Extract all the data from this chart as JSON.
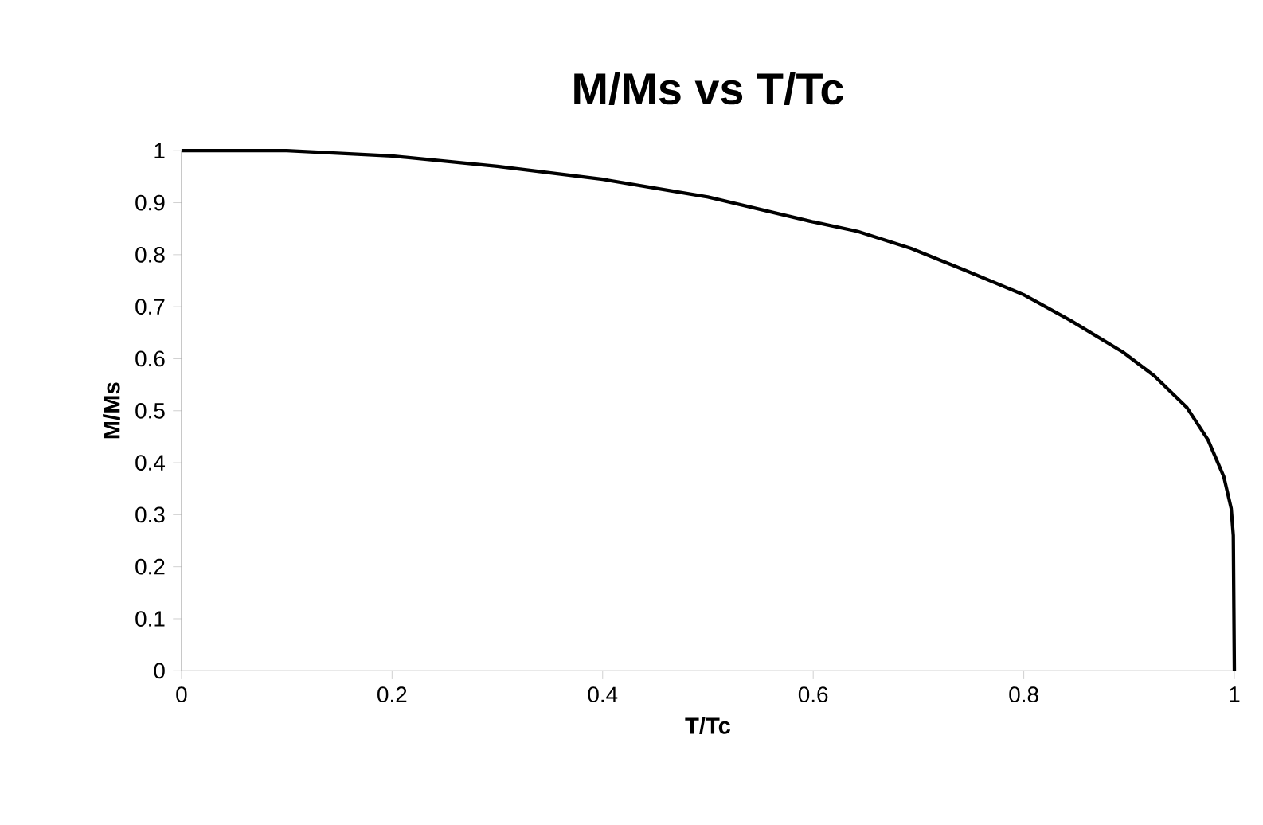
{
  "chart_data": {
    "type": "line",
    "title": "M/Ms vs T/Tc",
    "xlabel": "T/Tc",
    "ylabel": "M/Ms",
    "x": [
      0,
      0.1,
      0.2,
      0.3,
      0.4,
      0.5,
      0.6,
      0.642,
      0.693,
      0.743,
      0.8,
      0.844,
      0.894,
      0.924,
      0.955,
      0.975,
      0.99,
      0.997,
      0.999,
      1
    ],
    "series": [
      {
        "color": "#000000",
        "values": [
          1,
          1,
          0.99,
          0.97,
          0.945,
          0.911,
          0.863,
          0.845,
          0.812,
          0.771,
          0.723,
          0.674,
          0.613,
          0.567,
          0.506,
          0.444,
          0.373,
          0.312,
          0.26,
          0
        ]
      }
    ],
    "xlim": [
      0,
      1
    ],
    "ylim": [
      0,
      1
    ],
    "xticks": [
      0,
      0.2,
      0.4,
      0.6,
      0.8,
      1
    ],
    "yticks": [
      0,
      0.1,
      0.2,
      0.3,
      0.4,
      0.5,
      0.6,
      0.7,
      0.8,
      0.9,
      1
    ],
    "grid": false,
    "marker": "none",
    "line_style": "solid"
  }
}
